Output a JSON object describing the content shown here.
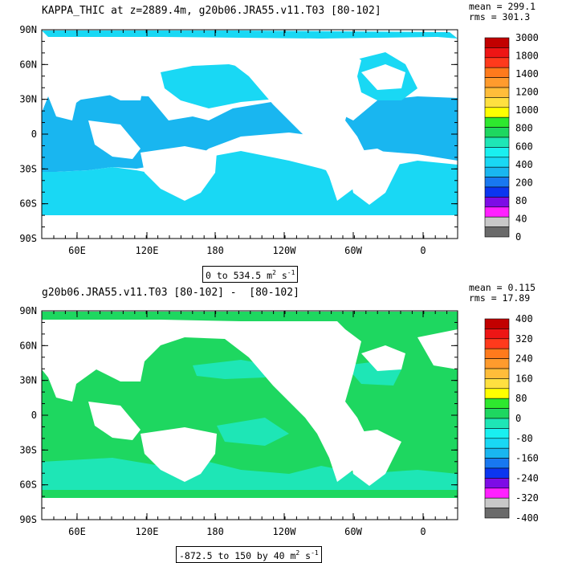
{
  "chart_data": [
    {
      "type": "heatmap",
      "title": "KAPPA_THIC at z=2889.4m, g20b06.JRA55.v11.T03 [80-102]",
      "stats": {
        "mean": "mean = 299.1",
        "rms": "rms = 301.3"
      },
      "range_label": "0 to 534.5 m",
      "range_units_exp": "2",
      "range_units_s": " s",
      "range_units_s_exp": "-1",
      "lat_ticks": [
        "90N",
        "60N",
        "30N",
        "0",
        "30S",
        "60S",
        "90S"
      ],
      "lon_ticks": [
        "60E",
        "120E",
        "180",
        "120W",
        "60W",
        "0"
      ],
      "colorbar_labels": [
        "3000",
        "1800",
        "1400",
        "1200",
        "1000",
        "800",
        "600",
        "400",
        "200",
        "80",
        "40",
        "0"
      ],
      "colorbar_colors": [
        "#c20000",
        "#ee1515",
        "#ff3a1c",
        "#ff7a1c",
        "#ff9b2d",
        "#ffbd3a",
        "#ffe040",
        "#ffff00",
        "#2ee82e",
        "#1ed760",
        "#1ee6b6",
        "#19f0f0",
        "#19d8f4",
        "#19b6f0",
        "#1878f0",
        "#0b36f0",
        "#7d0ce6",
        "#ff20ff",
        "#c8c8c8",
        "#6a6a6a"
      ],
      "field_colors": {
        "low": "#19b6f0",
        "mid": "#19d8f4",
        "high": "#19f0f0",
        "high2": "#1ee6b6"
      }
    },
    {
      "type": "heatmap",
      "title": "g20b06.JRA55.v11.T03 [80-102] -  [80-102]",
      "stats": {
        "mean": "mean = 0.115",
        "rms": "rms = 17.89"
      },
      "range_label": "-872.5 to 150 by 40 m",
      "range_units_exp": "2",
      "range_units_s": " s",
      "range_units_s_exp": "-1",
      "lat_ticks": [
        "90N",
        "60N",
        "30N",
        "0",
        "30S",
        "60S",
        "90S"
      ],
      "lon_ticks": [
        "60E",
        "120E",
        "180",
        "120W",
        "60W",
        "0"
      ],
      "colorbar_labels": [
        "400",
        "320",
        "240",
        "160",
        "80",
        "0",
        "-80",
        "-160",
        "-240",
        "-320",
        "-400"
      ],
      "colorbar_colors": [
        "#c20000",
        "#ee1515",
        "#ff3a1c",
        "#ff7a1c",
        "#ff9b2d",
        "#ffbd3a",
        "#ffe040",
        "#ffff00",
        "#2ee82e",
        "#1ed760",
        "#1ee6b6",
        "#19f0f0",
        "#19d8f4",
        "#19b6f0",
        "#1878f0",
        "#0b36f0",
        "#7d0ce6",
        "#ff20ff",
        "#c8c8c8",
        "#6a6a6a"
      ],
      "field_colors": {
        "main": "#1ed760",
        "alt": "#1ee6b6",
        "light": "#19f0f0"
      }
    }
  ]
}
